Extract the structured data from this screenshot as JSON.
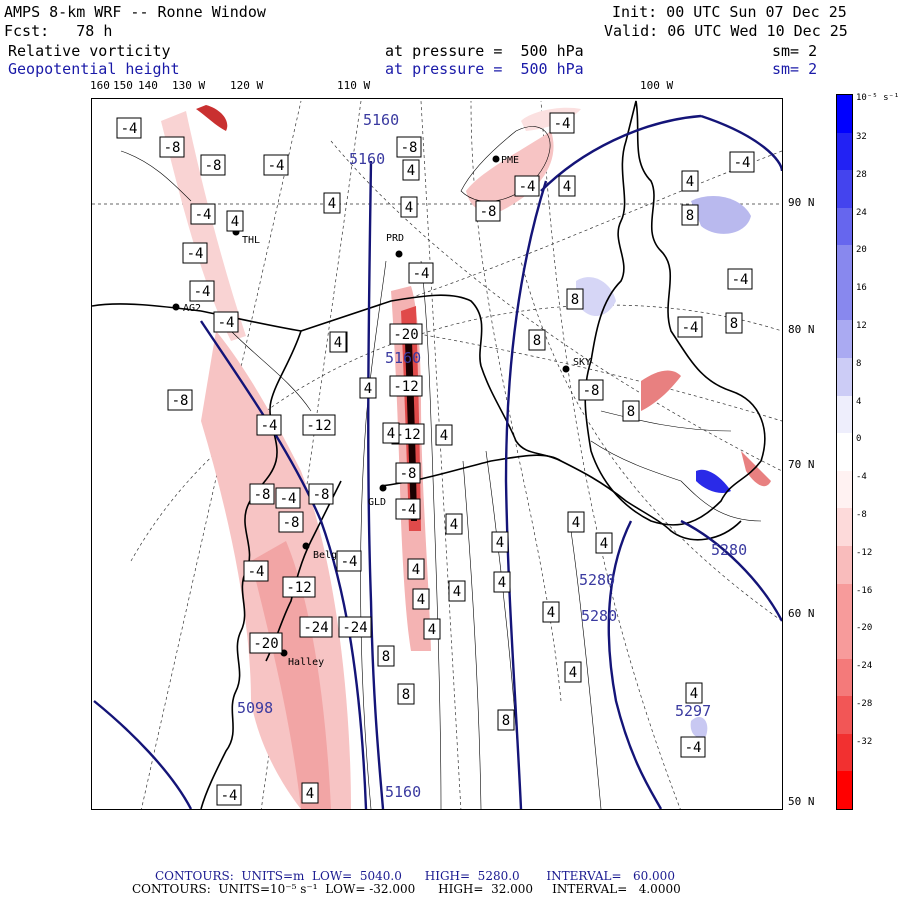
{
  "header": {
    "title": "AMPS 8-km WRF -- Ronne Window",
    "init": "Init: 00 UTC Sun 07 Dec 25",
    "fcst": "Fcst:   78 h",
    "valid": "Valid: 06 UTC Wed 10 Dec 25",
    "field1_name": "Relative vorticity",
    "field1_level": "at pressure =  500 hPa",
    "field1_sm": "sm= 2",
    "field2_name": "Geopotential height",
    "field2_level": "at pressure =  500 hPa",
    "field2_sm": "sm= 2"
  },
  "lon_labels": [
    "160",
    "150",
    "140",
    "130 W",
    "120 W",
    "110 W",
    "100 W"
  ],
  "lat_labels": [
    "90 N",
    "80 N",
    "70 N",
    "60 N",
    "50 N"
  ],
  "stations": [
    "PME",
    "PRD",
    "THL",
    "AG2",
    "SKY",
    "GLD",
    "Belgra",
    "Halley"
  ],
  "height_labels": [
    "5160",
    "5160",
    "5160",
    "5160",
    "5280",
    "5280",
    "5280",
    "5297",
    "5098"
  ],
  "vort_labels": [
    "-4",
    "-8",
    "-8",
    "-4",
    "-4",
    "4",
    "4",
    "4",
    "-4",
    "-8",
    "-4",
    "-8",
    "-4",
    "4",
    "-4",
    "4",
    "-4",
    "4",
    "-4",
    "-8",
    "-4",
    "-12",
    "-8",
    "-4",
    "-8",
    "-8",
    "-4",
    "-12",
    "-4",
    "-24",
    "-24",
    "-20",
    "-20",
    "-12",
    "-12",
    "-8",
    "-4",
    "4",
    "4",
    "4",
    "4",
    "4",
    "4",
    "4",
    "4",
    "4",
    "4",
    "4",
    "4",
    "4",
    "8",
    "8",
    "8",
    "8",
    "-8",
    "-4",
    "-4",
    "4",
    "4",
    "8",
    "8",
    "8",
    "8",
    "-4",
    "4",
    "-4",
    "4",
    "-4",
    "4"
  ],
  "colorbar": {
    "unit": "10⁻⁵ s⁻¹",
    "labels": [
      "32",
      "28",
      "24",
      "20",
      "16",
      "12",
      "8",
      "4",
      "0",
      "-4",
      "-8",
      "-12",
      "-16",
      "-20",
      "-24",
      "-28",
      "-32"
    ]
  },
  "footer": {
    "line1": "CONTOURS:  UNITS=m  LOW=  5040.0      HIGH=  5280.0       INTERVAL=   60.000",
    "line2": "CONTOURS:  UNITS=10⁻⁵ s⁻¹  LOW= -32.000      HIGH=  32.000     INTERVAL=   4.0000"
  }
}
